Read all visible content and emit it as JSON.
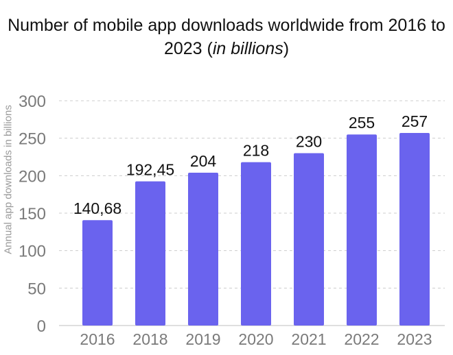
{
  "chart_data": {
    "type": "bar",
    "title": "Number of mobile app downloads worldwide from 2016 to 2023 (",
    "title_emphasis": "in billions",
    "title_suffix": ")",
    "ylabel": "Annual app downloads in billions",
    "xlabel": "",
    "categories": [
      "2016",
      "2018",
      "2019",
      "2020",
      "2021",
      "2022",
      "2023"
    ],
    "values": [
      140.68,
      192.45,
      204,
      218,
      230,
      255,
      257
    ],
    "data_labels": [
      "140,68",
      "192,45",
      "204",
      "218",
      "230",
      "255",
      "257"
    ],
    "yticks": [
      "0",
      "50",
      "100",
      "150",
      "200",
      "250",
      "300"
    ],
    "ylim": [
      0,
      300
    ],
    "grid": true,
    "colors": {
      "bar": "#6A63EE",
      "grid": "#cccccc",
      "tick": "#7a7a7a",
      "label": "#111111"
    }
  }
}
